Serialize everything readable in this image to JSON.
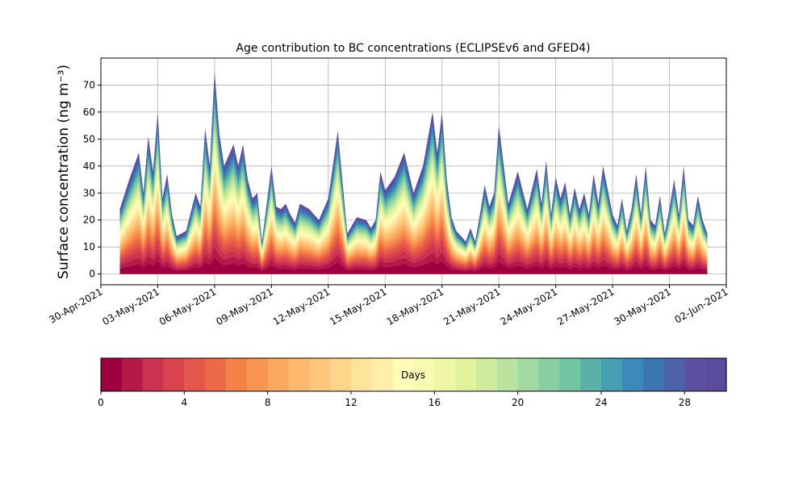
{
  "chart_data": {
    "type": "area",
    "title": "Age contribution to BC concentrations (ECLIPSEv6 and GFED4)",
    "ylabel": "Surface concentration (ng m⁻³)",
    "xlabel": "",
    "ylim": [
      -4,
      80
    ],
    "xlim": [
      "2021-04-30",
      "2021-06-02"
    ],
    "y_ticks": [
      0,
      10,
      20,
      30,
      40,
      50,
      60,
      70
    ],
    "x_ticks": [
      "30-Apr-2021",
      "03-May-2021",
      "06-May-2021",
      "09-May-2021",
      "12-May-2021",
      "15-May-2021",
      "18-May-2021",
      "21-May-2021",
      "24-May-2021",
      "27-May-2021",
      "30-May-2021",
      "02-Jun-2021"
    ],
    "grid": true,
    "stack_unit": "Days",
    "stack_layers": 30,
    "total_concentration": {
      "x": [
        "2021-05-01",
        "2021-05-01 12:00",
        "2021-05-02",
        "2021-05-02 06:00",
        "2021-05-02 12:00",
        "2021-05-02 18:00",
        "2021-05-03",
        "2021-05-03 06:00",
        "2021-05-03 12:00",
        "2021-05-03 18:00",
        "2021-05-04",
        "2021-05-04 12:00",
        "2021-05-05",
        "2021-05-05 06:00",
        "2021-05-05 12:00",
        "2021-05-05 18:00",
        "2021-05-06",
        "2021-05-06 06:00",
        "2021-05-06 12:00",
        "2021-05-07",
        "2021-05-07 06:00",
        "2021-05-07 12:00",
        "2021-05-07 18:00",
        "2021-05-08",
        "2021-05-08 06:00",
        "2021-05-08 12:00",
        "2021-05-09",
        "2021-05-09 06:00",
        "2021-05-09 12:00",
        "2021-05-09 18:00",
        "2021-05-10",
        "2021-05-10 06:00",
        "2021-05-10 12:00",
        "2021-05-11",
        "2021-05-11 12:00",
        "2021-05-12",
        "2021-05-12 12:00",
        "2021-05-13",
        "2021-05-13 12:00",
        "2021-05-14",
        "2021-05-14 06:00",
        "2021-05-14 12:00",
        "2021-05-14 18:00",
        "2021-05-15",
        "2021-05-15 12:00",
        "2021-05-16",
        "2021-05-16 12:00",
        "2021-05-17",
        "2021-05-17 12:00",
        "2021-05-17 18:00",
        "2021-05-18",
        "2021-05-18 06:00",
        "2021-05-18 12:00",
        "2021-05-18 18:00",
        "2021-05-19",
        "2021-05-19 06:00",
        "2021-05-19 12:00",
        "2021-05-19 18:00",
        "2021-05-20",
        "2021-05-20 06:00",
        "2021-05-20 12:00",
        "2021-05-20 18:00",
        "2021-05-21",
        "2021-05-21 12:00",
        "2021-05-22",
        "2021-05-22 12:00",
        "2021-05-23",
        "2021-05-23 06:00",
        "2021-05-23 12:00",
        "2021-05-23 18:00",
        "2021-05-24",
        "2021-05-24 06:00",
        "2021-05-24 12:00",
        "2021-05-24 18:00",
        "2021-05-25",
        "2021-05-25 06:00",
        "2021-05-25 12:00",
        "2021-05-25 18:00",
        "2021-05-26",
        "2021-05-26 06:00",
        "2021-05-26 12:00",
        "2021-05-27",
        "2021-05-27 06:00",
        "2021-05-27 12:00",
        "2021-05-27 18:00",
        "2021-05-28",
        "2021-05-28 06:00",
        "2021-05-28 12:00",
        "2021-05-28 18:00",
        "2021-05-29",
        "2021-05-29 06:00",
        "2021-05-29 12:00",
        "2021-05-29 18:00",
        "2021-05-30",
        "2021-05-30 06:00",
        "2021-05-30 12:00",
        "2021-05-30 18:00",
        "2021-05-31",
        "2021-05-31 06:00",
        "2021-05-31 12:00",
        "2021-05-31 18:00",
        "2021-06-01"
      ],
      "y": [
        24,
        35,
        45,
        30,
        51,
        38,
        60,
        28,
        37,
        22,
        14,
        16,
        30,
        25,
        54,
        40,
        75,
        52,
        40,
        48,
        40,
        48,
        35,
        28,
        30,
        12,
        40,
        25,
        24,
        26,
        22,
        19,
        26,
        24,
        20,
        28,
        53,
        15,
        21,
        20,
        17,
        20,
        38,
        31,
        36,
        45,
        30,
        40,
        60,
        45,
        60,
        35,
        21,
        16,
        14,
        12,
        17,
        12,
        22,
        33,
        25,
        30,
        55,
        26,
        38,
        24,
        39,
        26,
        42,
        22,
        36,
        28,
        34,
        22,
        32,
        24,
        30,
        22,
        37,
        26,
        40,
        22,
        18,
        28,
        16,
        24,
        37,
        22,
        40,
        20,
        18,
        29,
        15,
        24,
        35,
        22,
        40,
        20,
        18,
        29,
        20,
        15
      ],
      "note_ignore": ""
    }
  },
  "colorbar": {
    "label": "Days",
    "ticks": [
      "0",
      "4",
      "8",
      "12",
      "16",
      "20",
      "24",
      "28"
    ],
    "range": [
      0,
      30
    ]
  },
  "colors": {
    "palette": [
      "#9e0142",
      "#b4194a",
      "#cb3250",
      "#d8434e",
      "#e4574b",
      "#ed6a47",
      "#f58147",
      "#f99553",
      "#fca85e",
      "#fdb96d",
      "#fdc87c",
      "#fed68b",
      "#fee39b",
      "#ffefaa",
      "#fffcba",
      "#f7fbb2",
      "#edf8a4",
      "#e1f39a",
      "#cfec9d",
      "#bae3a0",
      "#a1d9a4",
      "#88cfa4",
      "#71c5a5",
      "#5bb1a9",
      "#479fb3",
      "#3a8abc",
      "#3d75b2",
      "#4b61aa",
      "#5e4fa2",
      "#5a4b9c"
    ]
  }
}
